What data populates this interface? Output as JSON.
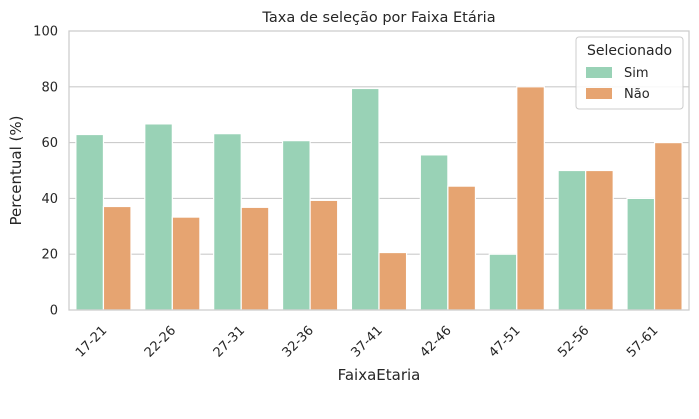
{
  "chart_data": {
    "type": "bar",
    "title": "Taxa de seleção por Faixa Etária",
    "xlabel": "FaixaEtaria",
    "ylabel": "Percentual (%)",
    "ylim": [
      0,
      100
    ],
    "yticks": [
      0,
      20,
      40,
      60,
      80,
      100
    ],
    "grid": true,
    "legend": {
      "title": "Selecionado",
      "placement": "top-right"
    },
    "categories": [
      "17-21",
      "22-26",
      "27-31",
      "32-36",
      "37-41",
      "42-46",
      "47-51",
      "52-56",
      "57-61"
    ],
    "series": [
      {
        "name": "Sim",
        "color": "#99d2b6",
        "values": [
          62.9,
          66.7,
          63.2,
          60.7,
          79.4,
          55.6,
          20.0,
          50.0,
          40.0
        ]
      },
      {
        "name": "Não",
        "color": "#e6a471",
        "values": [
          37.1,
          33.3,
          36.8,
          39.3,
          20.6,
          44.4,
          80.0,
          50.0,
          60.0
        ]
      }
    ]
  }
}
